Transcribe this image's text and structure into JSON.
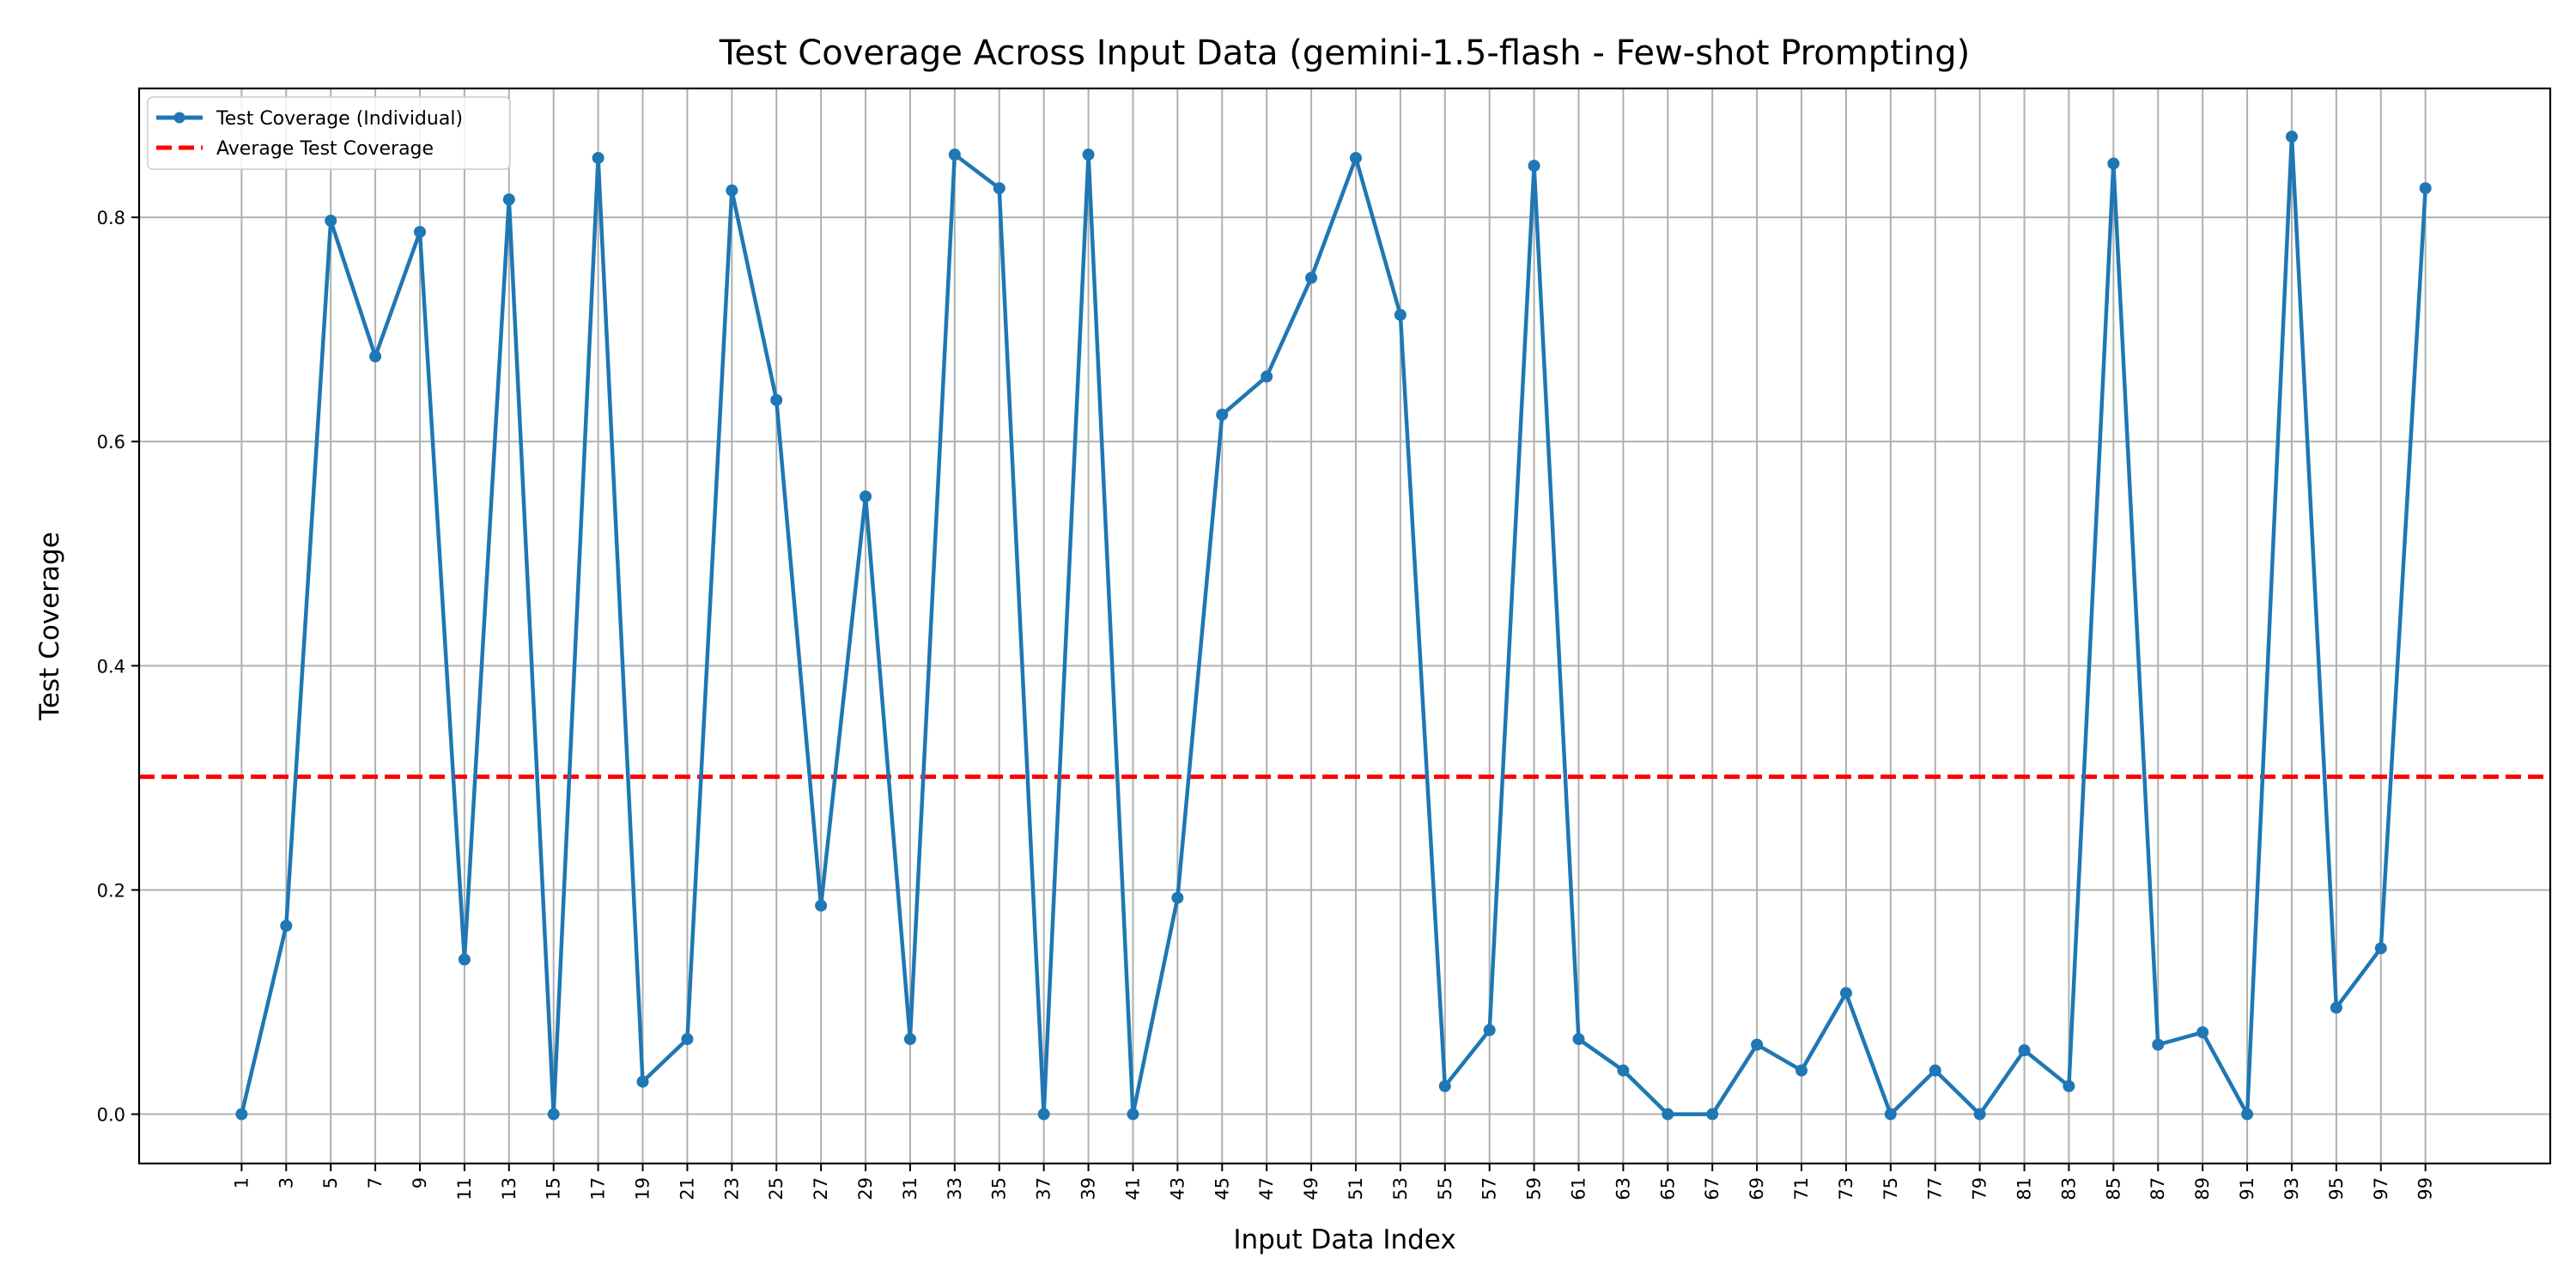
{
  "chart_data": {
    "type": "line",
    "title": "Test Coverage Across Input Data (gemini-1.5-flash - Few-shot Prompting)",
    "xlabel": "Input Data Index",
    "ylabel": "Test Coverage",
    "xlim": [
      -3.6,
      104.6
    ],
    "ylim": [
      -0.044,
      0.915
    ],
    "x_ticks": [
      1,
      3,
      5,
      7,
      9,
      11,
      13,
      15,
      17,
      19,
      21,
      23,
      25,
      27,
      29,
      31,
      33,
      35,
      37,
      39,
      41,
      43,
      45,
      47,
      49,
      51,
      53,
      55,
      57,
      59,
      61,
      63,
      65,
      67,
      69,
      71,
      73,
      75,
      77,
      79,
      81,
      83,
      85,
      87,
      89,
      91,
      93,
      95,
      97,
      99
    ],
    "y_ticks": [
      0.0,
      0.2,
      0.4,
      0.6,
      0.8
    ],
    "y_tick_labels": [
      "0.0",
      "0.2",
      "0.4",
      "0.6",
      "0.8"
    ],
    "grid": true,
    "legend_position": "top-left",
    "series": [
      {
        "name": "Test Coverage (Individual)",
        "color": "#1f77b4",
        "style": "solid-with-markers",
        "x": [
          1,
          3,
          5,
          7,
          9,
          11,
          13,
          15,
          17,
          19,
          21,
          23,
          25,
          27,
          29,
          31,
          33,
          35,
          37,
          39,
          41,
          43,
          45,
          47,
          49,
          51,
          53,
          55,
          57,
          59,
          61,
          63,
          65,
          67,
          69,
          71,
          73,
          75,
          77,
          79,
          81,
          83,
          85,
          87,
          89,
          91,
          93,
          95,
          97,
          99
        ],
        "values": [
          0.0,
          0.168,
          0.797,
          0.676,
          0.787,
          0.138,
          0.816,
          0.0,
          0.853,
          0.029,
          0.067,
          0.824,
          0.637,
          0.186,
          0.551,
          0.067,
          0.856,
          0.826,
          0.0,
          0.856,
          0.0,
          0.193,
          0.624,
          0.658,
          0.746,
          0.853,
          0.713,
          0.025,
          0.075,
          0.846,
          0.067,
          0.039,
          0.0,
          0.0,
          0.062,
          0.039,
          0.108,
          0.0,
          0.039,
          0.0,
          0.057,
          0.025,
          0.848,
          0.062,
          0.073,
          0.0,
          0.872,
          0.095,
          0.148,
          0.826
        ]
      },
      {
        "name": "Average Test Coverage",
        "color": "#ff0000",
        "style": "dashed",
        "value": 0.301
      }
    ]
  }
}
